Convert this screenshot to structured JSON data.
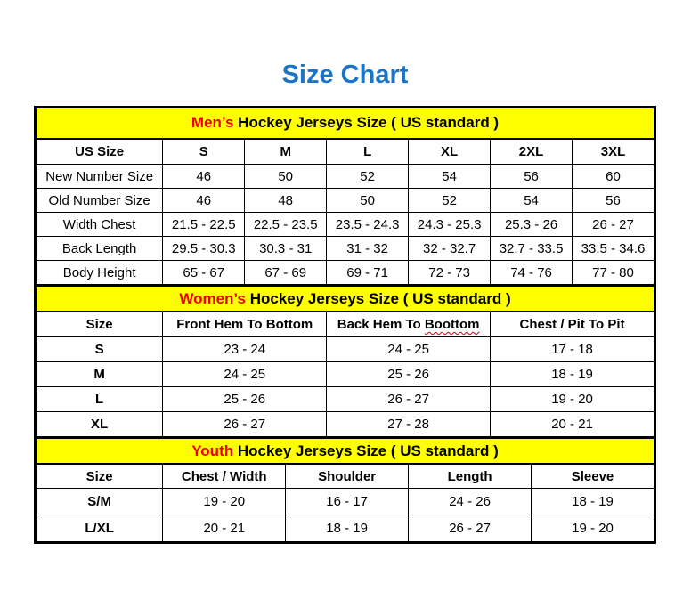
{
  "page": {
    "title": "Size Chart"
  },
  "colors": {
    "title": "#1B74C5",
    "section_bg": "#FFFF00",
    "section_accent": "#EE0000",
    "border": "#000000",
    "squiggle": "#D40000"
  },
  "tables": [
    {
      "id": "mens",
      "section_title": {
        "accent": "Men’s",
        "rest": " Hockey Jerseys Size ( US standard )"
      },
      "headers": [
        "US Size",
        "S",
        "M",
        "L",
        "XL",
        "2XL",
        "3XL"
      ],
      "rows": [
        {
          "label": "New Number Size",
          "values": [
            "46",
            "50",
            "52",
            "54",
            "56",
            "60"
          ]
        },
        {
          "label": "Old Number Size",
          "values": [
            "46",
            "48",
            "50",
            "52",
            "54",
            "56"
          ]
        },
        {
          "label": "Width Chest",
          "values": [
            "21.5 - 22.5",
            "22.5 - 23.5",
            "23.5 - 24.3",
            "24.3 - 25.3",
            "25.3 - 26",
            "26 - 27"
          ]
        },
        {
          "label": "Back Length",
          "values": [
            "29.5 - 30.3",
            "30.3 - 31",
            "31 - 32",
            "32 - 32.7",
            "32.7 - 33.5",
            "33.5 - 34.6"
          ]
        },
        {
          "label": "Body Height",
          "values": [
            "65 - 67",
            "67 - 69",
            "69 - 71",
            "72 - 73",
            "74 - 76",
            "77 - 80"
          ]
        }
      ]
    },
    {
      "id": "womens",
      "section_title": {
        "accent": "Women’s",
        "rest": " Hockey Jerseys Size ( US standard )"
      },
      "headers": [
        "Size",
        "Front Hem To Bottom",
        "Back Hem To Boottom",
        "Chest / Pit To Pit"
      ],
      "misspelling": {
        "column": 2,
        "word": "Boottom"
      },
      "rows": [
        {
          "label": "S",
          "values": [
            "23 - 24",
            "24 - 25",
            "17 - 18"
          ]
        },
        {
          "label": "M",
          "values": [
            "24 - 25",
            "25 - 26",
            "18 - 19"
          ]
        },
        {
          "label": "L",
          "values": [
            "25 - 26",
            "26 - 27",
            "19 - 20"
          ]
        },
        {
          "label": "XL",
          "values": [
            "26 - 27",
            "27 - 28",
            "20 - 21"
          ]
        }
      ]
    },
    {
      "id": "youth",
      "section_title": {
        "accent": "Youth",
        "rest": " Hockey Jerseys Size ( US standard )"
      },
      "headers": [
        "Size",
        "Chest / Width",
        "Shoulder",
        "Length",
        "Sleeve"
      ],
      "rows": [
        {
          "label": "S/M",
          "values": [
            "19 - 20",
            "16 - 17",
            "24 - 26",
            "18 - 19"
          ]
        },
        {
          "label": "L/XL",
          "values": [
            "20 - 21",
            "18 - 19",
            "26 - 27",
            "19 - 20"
          ]
        }
      ]
    }
  ]
}
